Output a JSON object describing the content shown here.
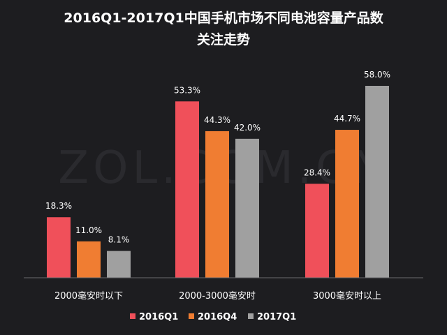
{
  "chart_data": {
    "type": "bar",
    "title_lines": [
      "2016Q1-2017Q1中国手机市场不同电池容量产品数",
      "关注走势"
    ],
    "categories": [
      "2000毫安时以下",
      "2000-3000毫安时",
      "3000毫安时以上"
    ],
    "series": [
      {
        "name": "2016Q1",
        "color": "#f0505a",
        "values": [
          18.3,
          53.3,
          28.4
        ],
        "labels": [
          "18.3%",
          "53.3%",
          "28.4%"
        ]
      },
      {
        "name": "2016Q4",
        "color": "#f07d32",
        "values": [
          11.0,
          44.3,
          44.7
        ],
        "labels": [
          "11.0%",
          "44.3%",
          "44.7%"
        ]
      },
      {
        "name": "2017Q1",
        "color": "#a0a0a0",
        "values": [
          8.1,
          42.0,
          58.0
        ],
        "labels": [
          "8.1%",
          "42.0%",
          "58.0%"
        ]
      }
    ],
    "ylim": [
      0,
      65
    ],
    "legend_position": "bottom",
    "grid": false,
    "watermark": "ZOL.COM.CN"
  }
}
